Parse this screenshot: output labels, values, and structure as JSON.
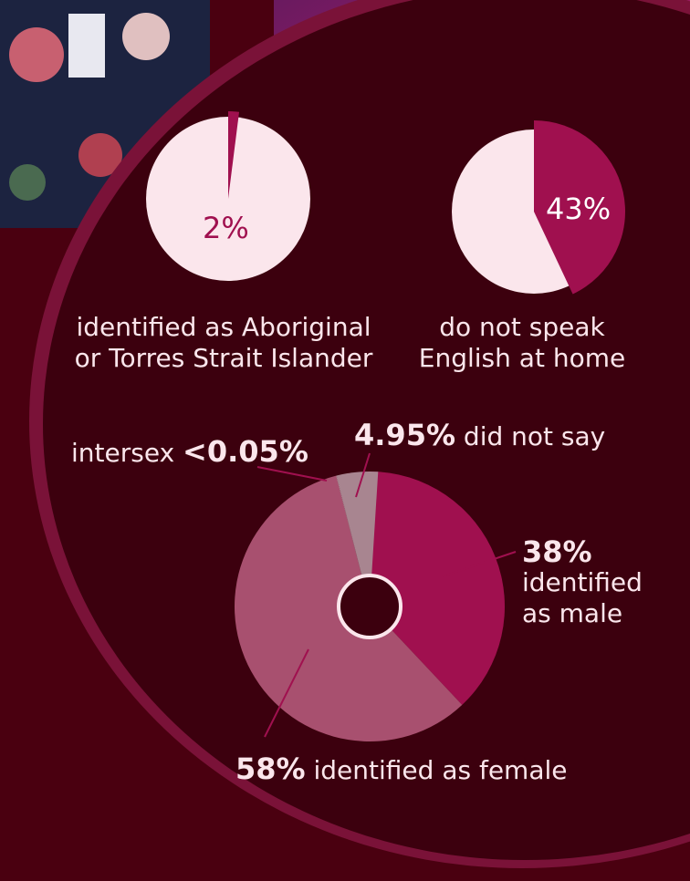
{
  "chart_data": [
    {
      "type": "pie",
      "values": [
        2
      ],
      "value_labels": [
        "2%"
      ],
      "color": "#a0104f",
      "caption": [
        "identified as Aboriginal",
        "or Torres Strait Islander"
      ]
    },
    {
      "type": "pie",
      "values": [
        43
      ],
      "value_labels": [
        "43%"
      ],
      "color": "#a0104f",
      "caption": [
        "do not speak",
        "English at home"
      ]
    },
    {
      "type": "donut",
      "categories": [
        "identified as male",
        "identified as female",
        "intersex",
        "did not say"
      ],
      "values": [
        38,
        58,
        0.05,
        4.95
      ],
      "value_labels": [
        "38%",
        "58%",
        "<0.05%",
        "4.95%"
      ],
      "colors": [
        "#a0104f",
        "#a8506f",
        "#c9a0ae",
        "#a88590"
      ]
    }
  ]
}
